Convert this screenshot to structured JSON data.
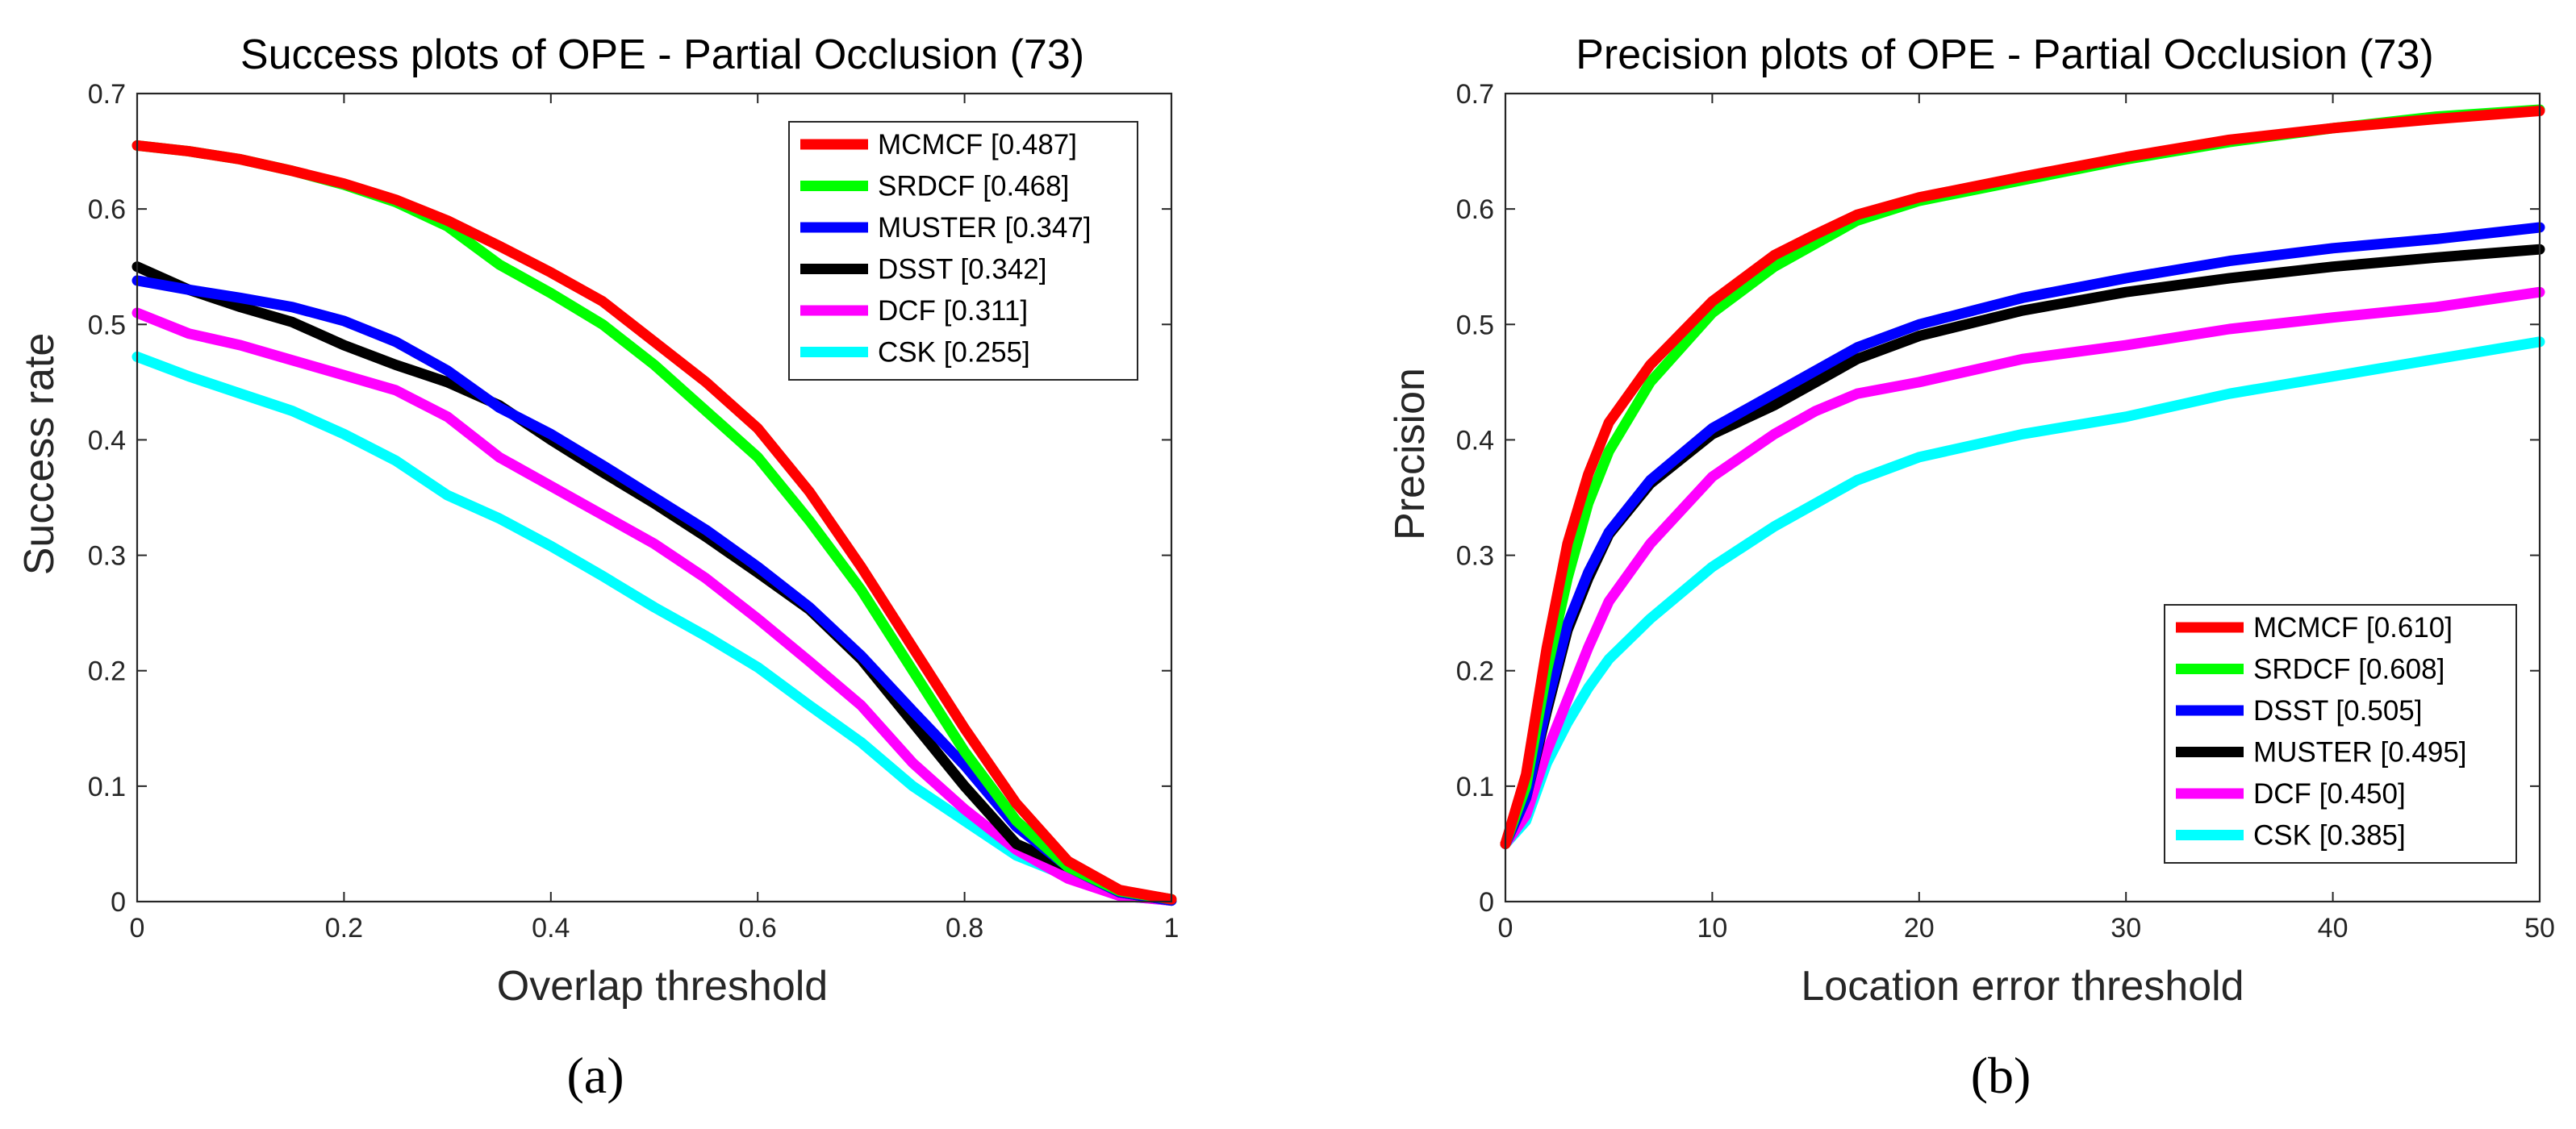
{
  "chart_data": [
    {
      "type": "line",
      "title": "Success plots of OPE - Partial Occlusion (73)",
      "xlabel": "Overlap threshold",
      "ylabel": "Success rate",
      "caption": "(a)",
      "xlim": [
        0,
        1
      ],
      "ylim": [
        0,
        0.7
      ],
      "xticks": [
        0,
        0.2,
        0.4,
        0.6,
        0.8,
        1
      ],
      "xtick_labels": [
        "0",
        "0.2",
        "0.4",
        "0.6",
        "0.8",
        "1"
      ],
      "yticks": [
        0,
        0.1,
        0.2,
        0.3,
        0.4,
        0.5,
        0.6,
        0.7
      ],
      "ytick_labels": [
        "0",
        "0.1",
        "0.2",
        "0.3",
        "0.4",
        "0.5",
        "0.6",
        "0.7"
      ],
      "legend_position": "top-right",
      "grid": false,
      "x": [
        0,
        0.05,
        0.1,
        0.15,
        0.2,
        0.25,
        0.3,
        0.35,
        0.4,
        0.45,
        0.5,
        0.55,
        0.6,
        0.65,
        0.7,
        0.75,
        0.8,
        0.85,
        0.9,
        0.95,
        1
      ],
      "series": [
        {
          "name": "MCMCF [0.487]",
          "color": "#ff0000",
          "values": [
            0.655,
            0.65,
            0.643,
            0.633,
            0.622,
            0.608,
            0.59,
            0.568,
            0.545,
            0.52,
            0.485,
            0.45,
            0.41,
            0.355,
            0.29,
            0.22,
            0.15,
            0.085,
            0.035,
            0.01,
            0.002
          ]
        },
        {
          "name": "SRDCF [0.468]",
          "color": "#00ff00",
          "values": [
            0.655,
            0.65,
            0.643,
            0.633,
            0.621,
            0.606,
            0.585,
            0.552,
            0.527,
            0.5,
            0.465,
            0.425,
            0.385,
            0.33,
            0.27,
            0.2,
            0.13,
            0.07,
            0.03,
            0.009,
            0.002
          ]
        },
        {
          "name": "MUSTER [0.347]",
          "color": "#0000ff",
          "values": [
            0.538,
            0.53,
            0.523,
            0.515,
            0.503,
            0.485,
            0.46,
            0.428,
            0.405,
            0.378,
            0.35,
            0.322,
            0.29,
            0.255,
            0.213,
            0.165,
            0.118,
            0.065,
            0.03,
            0.008,
            0.001
          ]
        },
        {
          "name": "DSST [0.342]",
          "color": "#000000",
          "values": [
            0.55,
            0.53,
            0.515,
            0.502,
            0.482,
            0.465,
            0.45,
            0.43,
            0.4,
            0.372,
            0.345,
            0.316,
            0.285,
            0.253,
            0.21,
            0.155,
            0.1,
            0.05,
            0.03,
            0.008,
            0.001
          ]
        },
        {
          "name": "DCF [0.311]",
          "color": "#ff00ff",
          "values": [
            0.51,
            0.492,
            0.482,
            0.469,
            0.456,
            0.443,
            0.42,
            0.385,
            0.36,
            0.335,
            0.31,
            0.28,
            0.245,
            0.208,
            0.17,
            0.12,
            0.08,
            0.045,
            0.02,
            0.005,
            0.001
          ]
        },
        {
          "name": "CSK [0.255]",
          "color": "#00ffff",
          "values": [
            0.472,
            0.455,
            0.44,
            0.425,
            0.405,
            0.382,
            0.352,
            0.332,
            0.308,
            0.282,
            0.255,
            0.23,
            0.203,
            0.17,
            0.138,
            0.1,
            0.07,
            0.04,
            0.022,
            0.005,
            0.001
          ]
        }
      ]
    },
    {
      "type": "line",
      "title": "Precision plots of OPE - Partial Occlusion (73)",
      "xlabel": "Location error threshold",
      "ylabel": "Precision",
      "caption": "(b)",
      "xlim": [
        0,
        50
      ],
      "ylim": [
        0,
        0.7
      ],
      "xticks": [
        0,
        10,
        20,
        30,
        40,
        50
      ],
      "xtick_labels": [
        "0",
        "10",
        "20",
        "30",
        "40",
        "50"
      ],
      "yticks": [
        0,
        0.1,
        0.2,
        0.3,
        0.4,
        0.5,
        0.6,
        0.7
      ],
      "ytick_labels": [
        "0",
        "0.1",
        "0.2",
        "0.3",
        "0.4",
        "0.5",
        "0.6",
        "0.7"
      ],
      "legend_position": "bottom-right",
      "grid": false,
      "x": [
        0,
        1,
        2,
        3,
        4,
        5,
        7,
        10,
        13,
        15,
        17,
        20,
        25,
        30,
        35,
        40,
        45,
        50
      ],
      "series": [
        {
          "name": "MCMCF [0.610]",
          "color": "#ff0000",
          "values": [
            0.05,
            0.11,
            0.22,
            0.31,
            0.37,
            0.415,
            0.465,
            0.52,
            0.56,
            0.578,
            0.595,
            0.61,
            0.628,
            0.645,
            0.66,
            0.67,
            0.678,
            0.685
          ]
        },
        {
          "name": "SRDCF [0.608]",
          "color": "#00ff00",
          "values": [
            0.05,
            0.1,
            0.2,
            0.28,
            0.345,
            0.39,
            0.45,
            0.51,
            0.55,
            0.57,
            0.59,
            0.607,
            0.625,
            0.643,
            0.658,
            0.67,
            0.68,
            0.686
          ]
        },
        {
          "name": "DSST [0.505]",
          "color": "#0000ff",
          "values": [
            0.05,
            0.09,
            0.17,
            0.24,
            0.285,
            0.32,
            0.365,
            0.41,
            0.44,
            0.46,
            0.48,
            0.5,
            0.523,
            0.54,
            0.555,
            0.566,
            0.574,
            0.584
          ]
        },
        {
          "name": "MUSTER [0.495]",
          "color": "#000000",
          "values": [
            0.05,
            0.09,
            0.165,
            0.235,
            0.28,
            0.318,
            0.362,
            0.405,
            0.43,
            0.45,
            0.47,
            0.49,
            0.512,
            0.528,
            0.54,
            0.55,
            0.558,
            0.565
          ]
        },
        {
          "name": "DCF [0.450]",
          "color": "#ff00ff",
          "values": [
            0.05,
            0.075,
            0.13,
            0.175,
            0.22,
            0.26,
            0.31,
            0.368,
            0.405,
            0.425,
            0.44,
            0.45,
            0.47,
            0.482,
            0.496,
            0.506,
            0.515,
            0.528
          ]
        },
        {
          "name": "CSK [0.385]",
          "color": "#00ffff",
          "values": [
            0.05,
            0.07,
            0.12,
            0.155,
            0.185,
            0.21,
            0.245,
            0.29,
            0.325,
            0.345,
            0.365,
            0.385,
            0.405,
            0.42,
            0.44,
            0.455,
            0.47,
            0.485
          ]
        }
      ]
    }
  ]
}
